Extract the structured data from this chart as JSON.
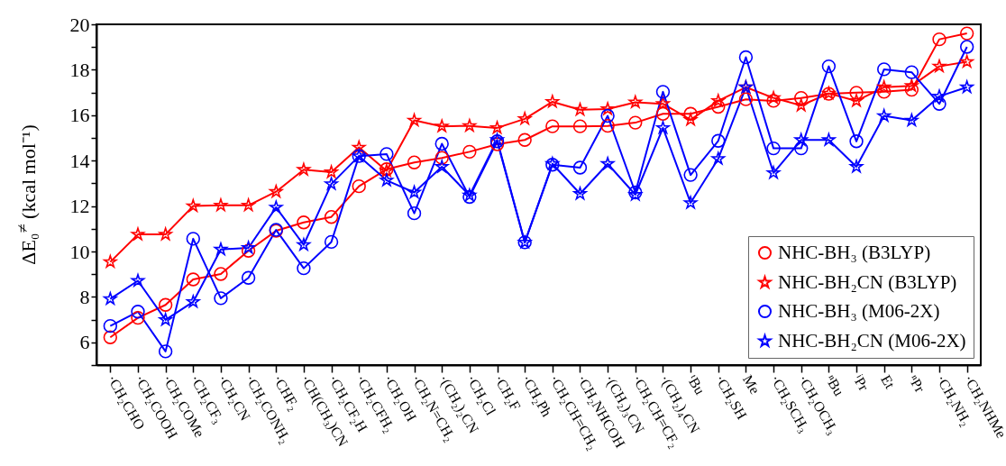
{
  "chart_data": {
    "type": "line",
    "ylabel": "ΔE₀$^{≠}$ (kcal mol⁻¹)",
    "categories": [
      "·CH₂CHO",
      "·CH₂COOH",
      "·CH₂COMe",
      "·CH₂CF₃",
      "·CH₂CN",
      "·CH₂CONH₂",
      "·CHF₂",
      "·CH(CH₃)CN",
      "·CH₂CF₂H",
      "·CH₂CFH₂",
      "·CH₂OH",
      "·CH₂N=CH₂",
      "·(CH₂)₂CN",
      "·CH₂Cl",
      "·CH₂F",
      "·CH₂Ph",
      "·CH₂CH=CH₂",
      "·CH₂NHCOH",
      "·(CH₂)₃CN",
      "·CH₂CH=CF₂",
      "·(CH₂)₄CN",
      "ᵗBu",
      "·CH₂SH",
      "Me",
      "·CH₂SCH₃",
      "·CH₂OCH₃",
      "ⁿBu",
      "ⁱPr",
      "Et",
      "ⁿPr",
      "·CH₂NH₂",
      "·CH₂NHMe"
    ],
    "series": [
      {
        "name": "NHC-BH₃ (B3LYP)",
        "color": "#ff0000",
        "marker": "circle",
        "values": [
          6.22,
          7.08,
          7.65,
          8.77,
          9.01,
          10.03,
          10.91,
          11.28,
          11.52,
          12.87,
          13.62,
          13.92,
          14.12,
          14.39,
          14.72,
          14.91,
          15.51,
          15.51,
          15.53,
          15.67,
          16.06,
          16.06,
          16.37,
          16.7,
          16.63,
          16.76,
          16.94,
          16.99,
          17.03,
          17.12,
          19.34,
          19.6
        ]
      },
      {
        "name": "NHC-BH₂CN (B3LYP)",
        "color": "#ff0000",
        "marker": "star",
        "values": [
          9.54,
          10.75,
          10.75,
          12.0,
          12.03,
          12.03,
          12.63,
          13.6,
          13.49,
          14.58,
          13.55,
          15.77,
          15.51,
          15.53,
          15.44,
          15.84,
          16.59,
          16.24,
          16.27,
          16.57,
          16.5,
          15.8,
          16.63,
          17.23,
          16.76,
          16.43,
          16.96,
          16.63,
          17.23,
          17.29,
          18.15,
          18.35
        ]
      },
      {
        "name": "NHC-BH₃ (M06-2X)",
        "color": "#0000ff",
        "marker": "circle",
        "values": [
          6.72,
          7.35,
          5.6,
          10.56,
          7.94,
          8.84,
          10.95,
          9.26,
          10.42,
          14.2,
          14.29,
          11.68,
          14.74,
          12.4,
          14.85,
          10.4,
          13.82,
          13.69,
          15.97,
          12.6,
          17.03,
          13.37,
          14.87,
          18.55,
          14.54,
          14.54,
          18.15,
          14.85,
          18.02,
          17.89,
          16.5,
          19.01
        ]
      },
      {
        "name": "NHC-BH₂CN (M06-2X)",
        "color": "#0000ff",
        "marker": "star",
        "values": [
          7.91,
          8.71,
          6.99,
          7.78,
          10.09,
          10.16,
          11.94,
          10.29,
          12.97,
          14.2,
          13.13,
          12.6,
          13.73,
          12.47,
          14.91,
          10.4,
          13.86,
          12.54,
          13.86,
          12.5,
          15.44,
          12.14,
          14.08,
          17.23,
          13.46,
          14.91,
          14.91,
          13.73,
          15.97,
          15.77,
          16.83,
          17.23
        ]
      }
    ],
    "ylim": [
      5,
      20
    ],
    "yticks": [
      {
        "value": 5,
        "label": null
      },
      6,
      {
        "value": 7,
        "label": null
      },
      8,
      {
        "value": 9,
        "label": null
      },
      10,
      {
        "value": 11,
        "label": null
      },
      12,
      {
        "value": 13,
        "label": null
      },
      14,
      {
        "value": 15,
        "label": null
      },
      16,
      {
        "value": 17,
        "label": null
      },
      18,
      {
        "value": 19,
        "label": null
      },
      20
    ],
    "legend": "bottom right",
    "line_style": "solid"
  }
}
